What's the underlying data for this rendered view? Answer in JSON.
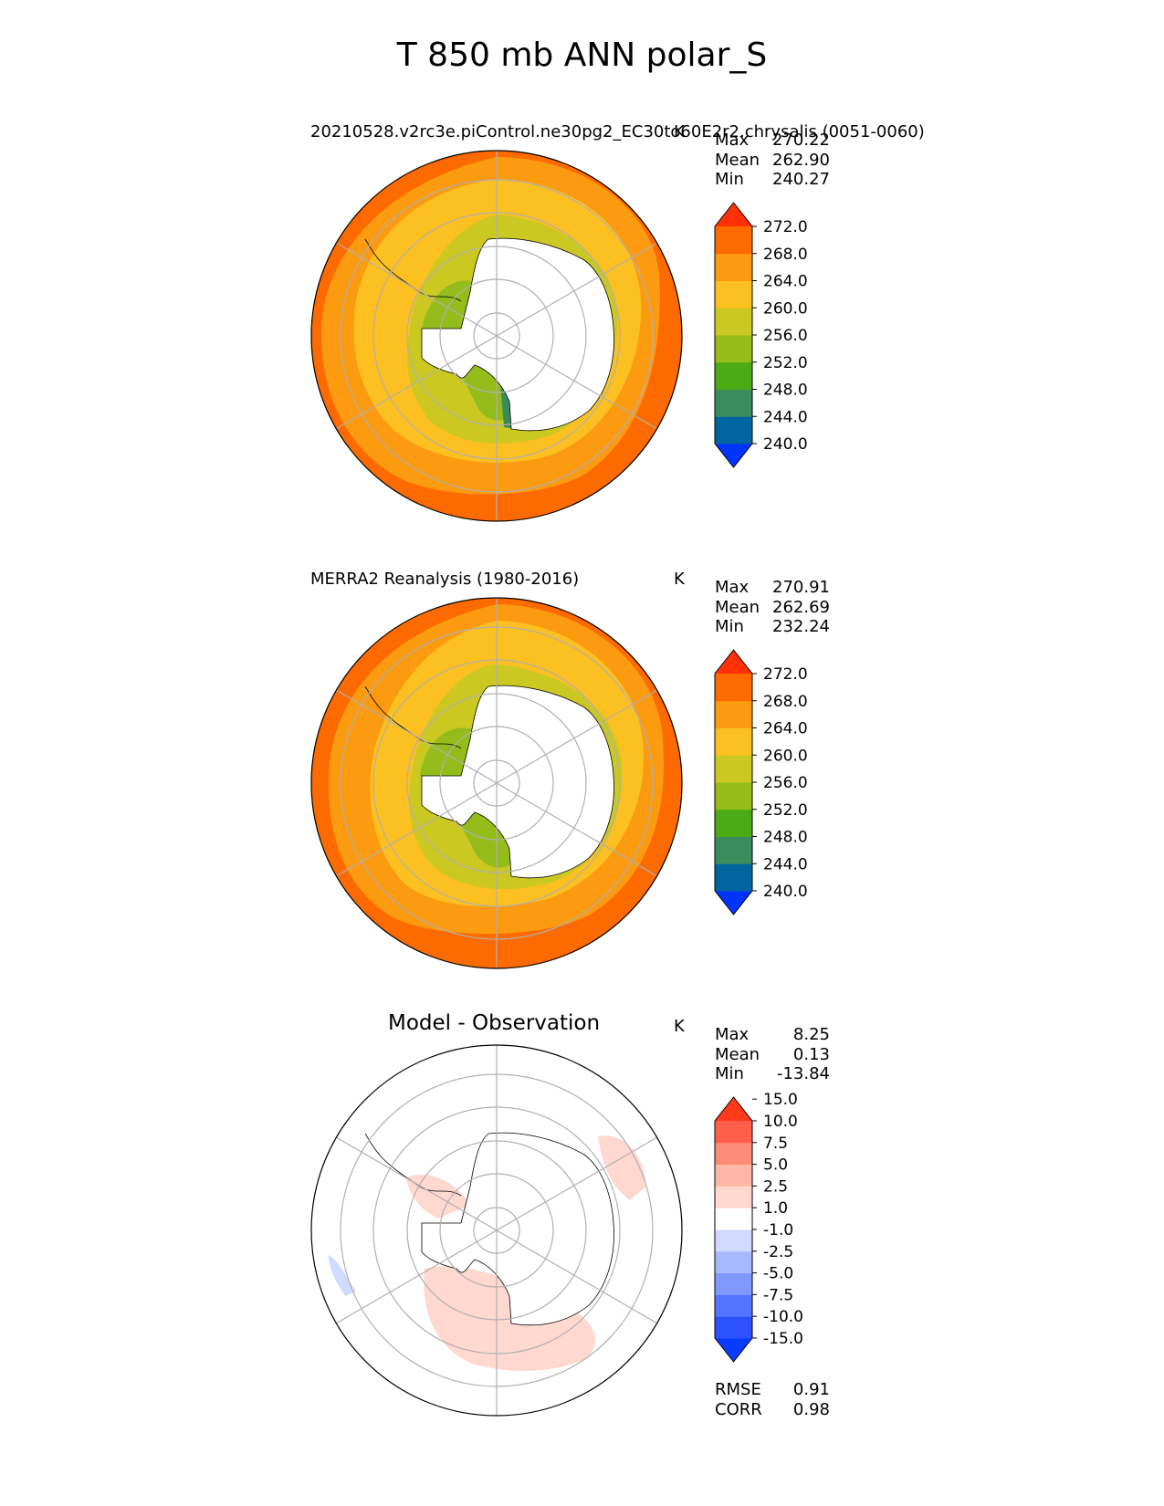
{
  "title": "T 850 mb ANN polar_S",
  "colors": {
    "temp": [
      "#0033ff",
      "#0066a0",
      "#3a8c5c",
      "#4caa14",
      "#94bc1a",
      "#cbc822",
      "#fcc020",
      "#fc9a10",
      "#fc6a00",
      "#ff3006"
    ],
    "diff": [
      "#0a3cff",
      "#2c52ff",
      "#5274ff",
      "#8099ff",
      "#a8b8ff",
      "#d0daff",
      "#ffffff",
      "#ffd8d0",
      "#ffb8a8",
      "#ff8c78",
      "#ff5f4a",
      "#ff3a1a"
    ],
    "land": "#ffffff",
    "grid": "#b0b0b0",
    "coast": "#000000"
  },
  "panels": [
    {
      "title": "20210528.v2rc3e.piControl.ne30pg2_EC30to60E2r2.chrysalis (0051-0060)",
      "units": "K",
      "stats": [
        {
          "label": "Max",
          "value": "270.22"
        },
        {
          "label": "Mean",
          "value": "262.90"
        },
        {
          "label": "Min",
          "value": "240.27"
        }
      ],
      "colorbar": {
        "ticks": [
          "240.0",
          "244.0",
          "248.0",
          "252.0",
          "256.0",
          "260.0",
          "264.0",
          "268.0",
          "272.0"
        ]
      }
    },
    {
      "title": "MERRA2 Reanalysis (1980-2016)",
      "units": "K",
      "stats": [
        {
          "label": "Max",
          "value": "270.91"
        },
        {
          "label": "Mean",
          "value": "262.69"
        },
        {
          "label": "Min",
          "value": "232.24"
        }
      ],
      "colorbar": {
        "ticks": [
          "240.0",
          "244.0",
          "248.0",
          "252.0",
          "256.0",
          "260.0",
          "264.0",
          "268.0",
          "272.0"
        ]
      }
    },
    {
      "title": "Model - Observation",
      "units": "K",
      "stats": [
        {
          "label": "Max",
          "value": "8.25"
        },
        {
          "label": "Mean",
          "value": "0.13"
        },
        {
          "label": "Min",
          "value": "-13.84"
        }
      ],
      "colorbar": {
        "ticks": [
          "-15.0",
          "-10.0",
          "-7.5",
          "-5.0",
          "-2.5",
          "-1.0",
          "1.0",
          "2.5",
          "5.0",
          "7.5",
          "10.0",
          "15.0"
        ]
      },
      "metrics": [
        {
          "label": "RMSE",
          "value": "0.91"
        },
        {
          "label": "CORR",
          "value": "0.98"
        }
      ]
    }
  ]
}
